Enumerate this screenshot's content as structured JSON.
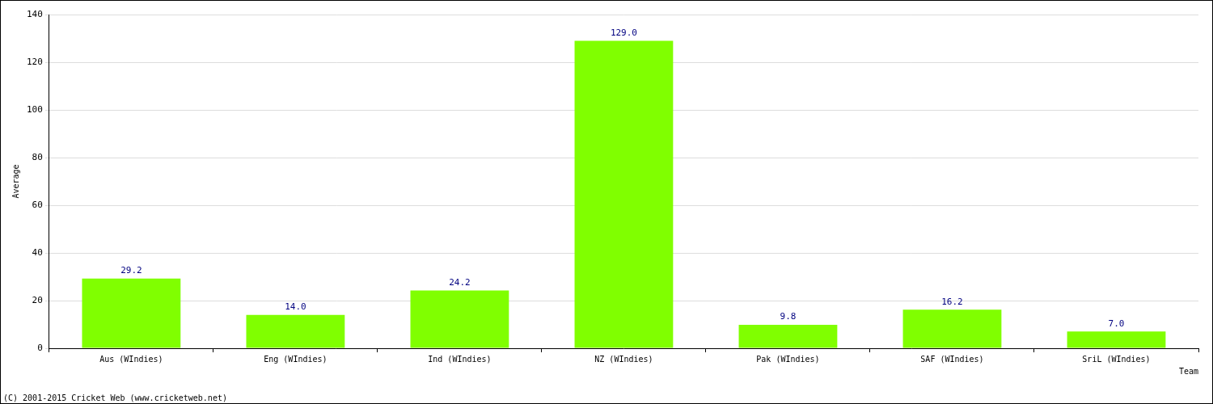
{
  "chart_data": {
    "type": "bar",
    "categories": [
      "Aus (WIndies)",
      "Eng (WIndies)",
      "Ind (WIndies)",
      "NZ (WIndies)",
      "Pak (WIndies)",
      "SAF (WIndies)",
      "SriL (WIndies)"
    ],
    "values": [
      29.2,
      14.0,
      24.2,
      129.0,
      9.8,
      16.2,
      7.0
    ],
    "value_labels": [
      "29.2",
      "14.0",
      "24.2",
      "129.0",
      "9.8",
      "16.2",
      "7.0"
    ],
    "data_labels": true,
    "color": "#80ff00",
    "x_label": "Team",
    "y_label": "Average",
    "ylim": [
      0,
      140
    ],
    "yticks": [
      0,
      20,
      40,
      60,
      80,
      100,
      120,
      140
    ],
    "grid": true,
    "source": "(C) 2001-2015 Cricket Web (www.cricketweb.net)"
  }
}
